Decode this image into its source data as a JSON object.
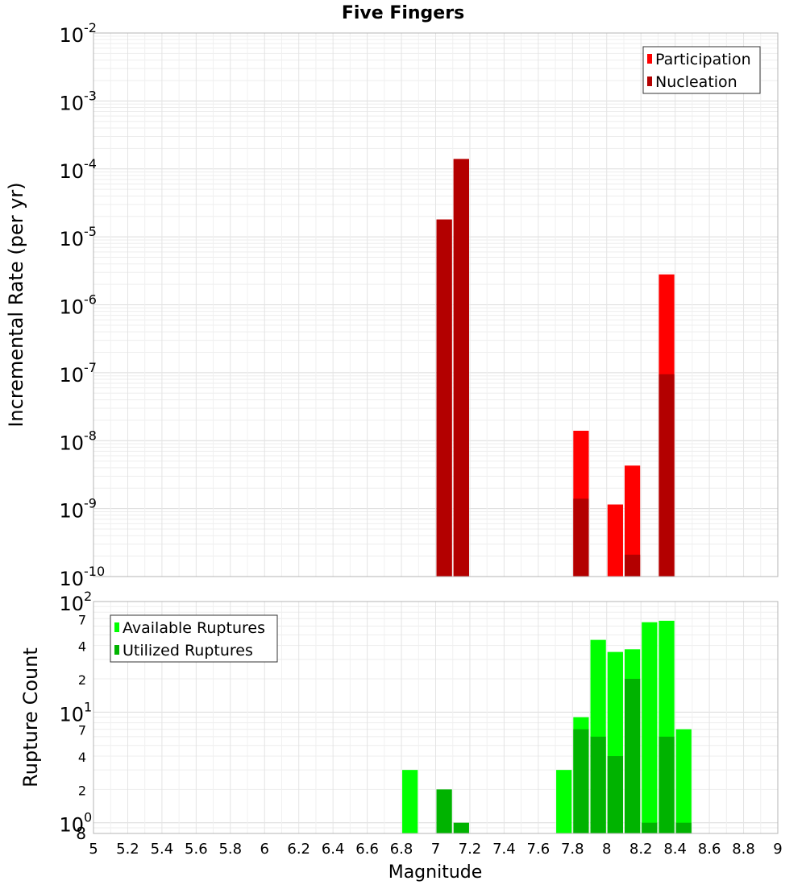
{
  "chart_data": {
    "title": "Five Fingers",
    "xlabel": "Magnitude",
    "xlim": [
      5,
      9
    ],
    "x_ticks": [
      "5",
      "5.2",
      "5.4",
      "5.6",
      "5.8",
      "6",
      "6.2",
      "6.4",
      "6.6",
      "6.8",
      "7",
      "7.2",
      "7.4",
      "7.6",
      "7.8",
      "8",
      "8.2",
      "8.4",
      "8.6",
      "8.8",
      "9"
    ],
    "bin_width": 0.1,
    "panels": [
      {
        "id": "rate",
        "type": "bar",
        "ylabel": "Incremental Rate (per yr)",
        "yscale": "log",
        "ylim": [
          1e-10,
          0.01
        ],
        "y_major_ticks": [
          {
            "value": 1e-10,
            "base": "10",
            "exp": "-10"
          },
          {
            "value": 1e-09,
            "base": "10",
            "exp": "-9"
          },
          {
            "value": 1e-08,
            "base": "10",
            "exp": "-8"
          },
          {
            "value": 1e-07,
            "base": "10",
            "exp": "-7"
          },
          {
            "value": 1e-06,
            "base": "10",
            "exp": "-6"
          },
          {
            "value": 1e-05,
            "base": "10",
            "exp": "-5"
          },
          {
            "value": 0.0001,
            "base": "10",
            "exp": "-4"
          },
          {
            "value": 0.001,
            "base": "10",
            "exp": "-3"
          },
          {
            "value": 0.01,
            "base": "10",
            "exp": "-2"
          }
        ],
        "y_minor_labels": [],
        "legend_position": "top-right",
        "series": [
          {
            "name": "Participation",
            "color": "#ff0000",
            "x": [
              7.05,
              7.15,
              7.85,
              8.05,
              8.15,
              8.35
            ],
            "values": [
              1.8e-05,
              0.00014,
              1.4e-08,
              1.15e-09,
              4.3e-09,
              2.8e-06
            ]
          },
          {
            "name": "Nucleation",
            "color": "#b30000",
            "x": [
              7.05,
              7.15,
              7.85,
              8.15,
              8.35
            ],
            "values": [
              1.8e-05,
              0.00014,
              1.4e-09,
              2.1e-10,
              9.5e-08
            ]
          }
        ]
      },
      {
        "id": "count",
        "type": "bar",
        "ylabel": "Rupture Count",
        "yscale": "log",
        "ylim": [
          0.8,
          100
        ],
        "y_major_ticks": [
          {
            "value": 1,
            "base": "10",
            "exp": "0"
          },
          {
            "value": 10,
            "base": "10",
            "exp": "1"
          },
          {
            "value": 100,
            "base": "10",
            "exp": "2"
          }
        ],
        "y_minor_labels": [
          {
            "value": 0.8,
            "label": "8"
          },
          {
            "value": 2,
            "label": "2"
          },
          {
            "value": 4,
            "label": "4"
          },
          {
            "value": 7,
            "label": "7"
          },
          {
            "value": 20,
            "label": "2"
          },
          {
            "value": 40,
            "label": "4"
          },
          {
            "value": 70,
            "label": "7"
          }
        ],
        "legend_position": "top-left",
        "series": [
          {
            "name": "Available Ruptures",
            "color": "#00ff00",
            "x": [
              6.85,
              7.75,
              7.85,
              7.95,
              8.05,
              8.15,
              8.25,
              8.35,
              8.45
            ],
            "values": [
              3,
              3,
              9,
              45,
              35,
              37,
              65,
              67,
              7
            ]
          },
          {
            "name": "Utilized Ruptures",
            "color": "#00b300",
            "x": [
              7.05,
              7.15,
              7.85,
              7.95,
              8.05,
              8.15,
              8.25,
              8.35,
              8.45
            ],
            "values": [
              2,
              1,
              7,
              6,
              4,
              20,
              1,
              6,
              1
            ]
          }
        ]
      }
    ]
  }
}
